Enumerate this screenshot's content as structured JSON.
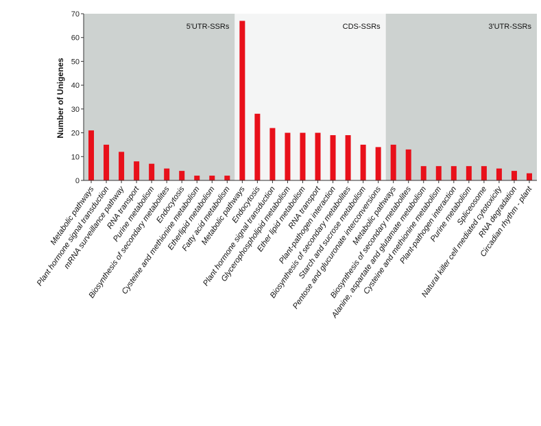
{
  "chart_data": {
    "type": "bar",
    "ylabel": "Number of Unigenes",
    "ylim": [
      0,
      70
    ],
    "yticks": [
      0,
      10,
      20,
      30,
      40,
      50,
      60,
      70
    ],
    "sections": [
      {
        "label": "5'UTR-SSRs",
        "bg": "#cdd2d0",
        "categories": [
          "Metabolic pathways",
          "Plant hormone signal transduction",
          "mRNA surveillance pathway",
          "RNA transport",
          "Purine metabolism",
          "Biosynthesis of secondary metabolites",
          "Endocytosis",
          "Cysteine and methionine metabolism",
          "Etherlipid metabolism",
          "Fatty acid metabolism"
        ],
        "values": [
          21,
          15,
          12,
          8,
          7,
          5,
          4,
          2,
          2,
          2
        ]
      },
      {
        "label": "CDS-SSRs",
        "bg": "#f4f5f5",
        "categories": [
          "Metabolic pathways",
          "Endocytosis",
          "Plant hormone signal transduction",
          "Glycerophospholipid metabolism",
          "Ether lipid metabolism",
          "RNA transport",
          "Plant-pathogen interaction",
          "Biosynthesis of secondary metabolites",
          "Starch and sucrose metabolism",
          "Pentose and glucuronate interconversions"
        ],
        "values": [
          67,
          28,
          22,
          20,
          20,
          20,
          19,
          19,
          15,
          14
        ]
      },
      {
        "label": "3'UTR-SSRs",
        "bg": "#cdd2d0",
        "categories": [
          "Metabolic pathways",
          "Biosynthesis of secondary metabolites",
          "Alanine, aspartate and glutamate metabolism",
          "Cysteine and methionine metabolism",
          "Plant-pathogen interaction",
          "Purine metabolism",
          "Spliceosome",
          "Natural killer cell mediated cytotoxicity",
          "RNA degradation",
          "Circadian rhythm - plant"
        ],
        "values": [
          15,
          13,
          6,
          6,
          6,
          6,
          6,
          5,
          4,
          3
        ]
      }
    ],
    "bar_color": "#e8101a",
    "grid": false,
    "legend": "none"
  }
}
